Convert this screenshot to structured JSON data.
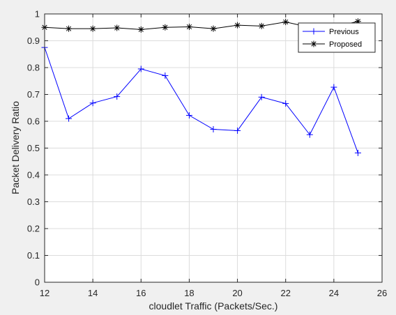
{
  "chart_data": {
    "type": "line",
    "title": "",
    "xlabel": "cloudlet Traffic (Packets/Sec.)",
    "ylabel": "Packet Delivery Ratio",
    "xlim": [
      12,
      26
    ],
    "ylim": [
      0,
      1
    ],
    "xticks": [
      "12",
      "14",
      "16",
      "18",
      "20",
      "22",
      "24",
      "26"
    ],
    "yticks": [
      "0",
      "0.1",
      "0.2",
      "0.3",
      "0.4",
      "0.5",
      "0.6",
      "0.7",
      "0.8",
      "0.9",
      "1"
    ],
    "grid": true,
    "legend_position": "top-right",
    "x": [
      12,
      13,
      14,
      15,
      16,
      17,
      18,
      19,
      20,
      21,
      22,
      23,
      24,
      25
    ],
    "series": [
      {
        "name": "Previous",
        "color": "#0000ff",
        "marker": "plus",
        "values": [
          0.875,
          0.61,
          0.668,
          0.692,
          0.795,
          0.77,
          0.622,
          0.57,
          0.565,
          0.69,
          0.666,
          0.55,
          0.727,
          0.482
        ]
      },
      {
        "name": "Proposed",
        "color": "#000000",
        "marker": "asterisk",
        "values": [
          0.95,
          0.945,
          0.945,
          0.948,
          0.942,
          0.95,
          0.952,
          0.945,
          0.958,
          0.955,
          0.97,
          0.95,
          0.952,
          0.972
        ]
      }
    ]
  }
}
